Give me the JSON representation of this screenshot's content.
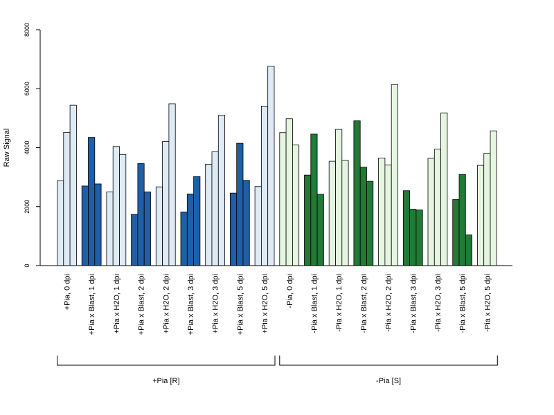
{
  "chart_data": {
    "type": "bar",
    "ylabel": "Raw Signal",
    "ylim": [
      0,
      8000
    ],
    "yticks": [
      0,
      2000,
      4000,
      6000,
      8000
    ],
    "grid": false,
    "legend": "none",
    "colors": {
      "light_blue": "#deebf7",
      "dark_blue": "#1f5fa8",
      "light_green": "#e5f5e0",
      "dark_green": "#217a35"
    },
    "categories": [
      "+Pia, 0 dpi",
      "+Pia x Blast, 1 dpi",
      "+Pia x H2O, 1 dpi",
      "+Pia x Blast, 2 dpi",
      "+Pia x H2O, 2 dpi",
      "+Pia x Blast, 3 dpi",
      "+Pia x H2O, 3 dpi",
      "+Pia x Blast, 5 dpi",
      "+Pia x H2O, 5 dpi",
      "-Pia, 0 dpi",
      "-Pia x Blast, 1 dpi",
      "-Pia x H2O, 1 dpi",
      "-Pia x Blast, 2 dpi",
      "-Pia x H2O, 2 dpi",
      "-Pia x Blast, 3 dpi",
      "-Pia x H2O, 3 dpi",
      "-Pia x Blast, 5 dpi",
      "-Pia x H2O, 5 dpi"
    ],
    "bar_colors": [
      "light_blue",
      "dark_blue",
      "light_blue",
      "dark_blue",
      "light_blue",
      "dark_blue",
      "light_blue",
      "dark_blue",
      "light_blue",
      "light_green",
      "dark_green",
      "light_green",
      "dark_green",
      "light_green",
      "dark_green",
      "light_green",
      "dark_green",
      "light_green"
    ],
    "replicates": [
      [
        2880,
        4520,
        5440
      ],
      [
        2700,
        4350,
        2770
      ],
      [
        2500,
        4040,
        3770
      ],
      [
        1740,
        3460,
        2500
      ],
      [
        2670,
        4210,
        5490
      ],
      [
        1820,
        2430,
        3020
      ],
      [
        3440,
        3860,
        5100
      ],
      [
        2460,
        4150,
        2890
      ],
      [
        2680,
        5410,
        6760
      ],
      [
        4510,
        4980,
        4090
      ],
      [
        3070,
        4460,
        2420
      ],
      [
        3540,
        4620,
        3570
      ],
      [
        4910,
        3340,
        2860
      ],
      [
        3650,
        3410,
        6140
      ],
      [
        2540,
        1910,
        1890
      ],
      [
        3640,
        3950,
        5180
      ],
      [
        2240,
        3090,
        1040
      ],
      [
        3400,
        3810,
        4570
      ]
    ],
    "groups": [
      {
        "label": "+Pia [R]",
        "first": 0,
        "last": 8
      },
      {
        "label": "-Pia [S]",
        "first": 9,
        "last": 17
      }
    ]
  }
}
